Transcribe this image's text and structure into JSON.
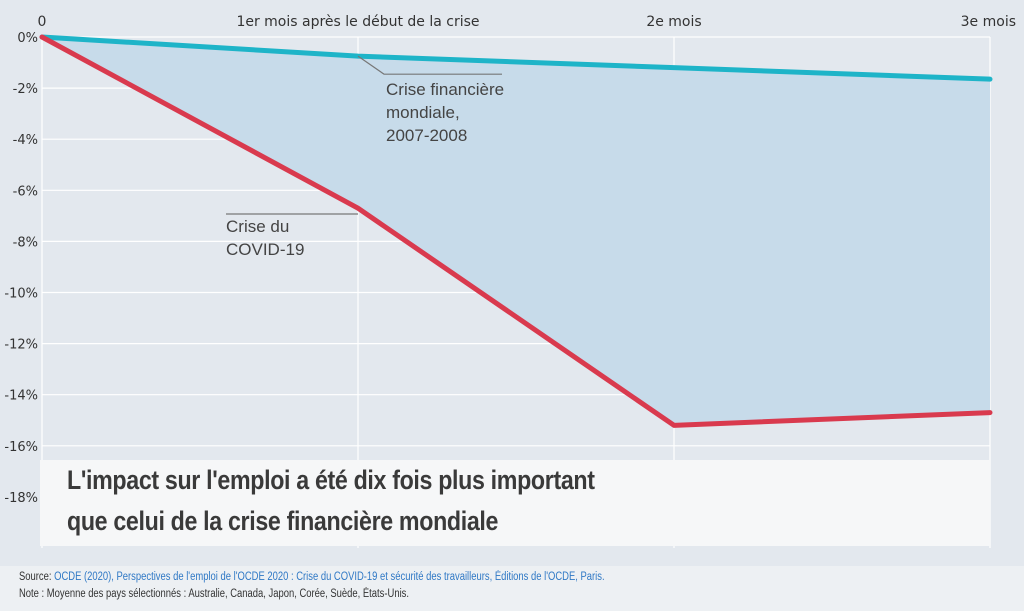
{
  "chart_data": {
    "type": "line",
    "x_tick_labels": [
      "0",
      "1er mois après le début de la crise",
      "2e mois",
      "3e mois"
    ],
    "x": [
      0,
      1,
      2,
      3
    ],
    "y_tick_labels": [
      "0%",
      "-2%",
      "-4%",
      "-6%",
      "-8%",
      "-10%",
      "-12%",
      "-14%",
      "-16%",
      "-18%"
    ],
    "ylim": [
      -20,
      0
    ],
    "series": [
      {
        "name": "Crise financière mondiale, 2007-2008",
        "values": [
          0,
          -0.75,
          -1.2,
          -1.65
        ],
        "color": "#1eb4c8"
      },
      {
        "name": "Crise du COVID-19",
        "values": [
          0,
          -6.7,
          -15.2,
          -14.7
        ],
        "color": "#d93a4e"
      }
    ],
    "annotations": {
      "gfc": [
        "Crise financière",
        "mondiale,",
        "2007-2008"
      ],
      "covid": [
        "Crise du",
        "COVID-19"
      ]
    },
    "fill_between_color": "#c7dbea",
    "grid": true
  },
  "headline": {
    "line1": "L'impact sur l'emploi a été dix fois plus important",
    "line2": "que celui de la crise financière mondiale"
  },
  "footer": {
    "source_label": "Source: ",
    "source_text": "OCDE (2020), Perspectives de l'emploi de l'OCDE 2020 : Crise du COVID-19 et sécurité des travailleurs, Éditions de l'OCDE, Paris.",
    "note": "Note : Moyenne des pays sélectionnés : Australie, Canada, Japon, Corée, Suède, États-Unis."
  }
}
